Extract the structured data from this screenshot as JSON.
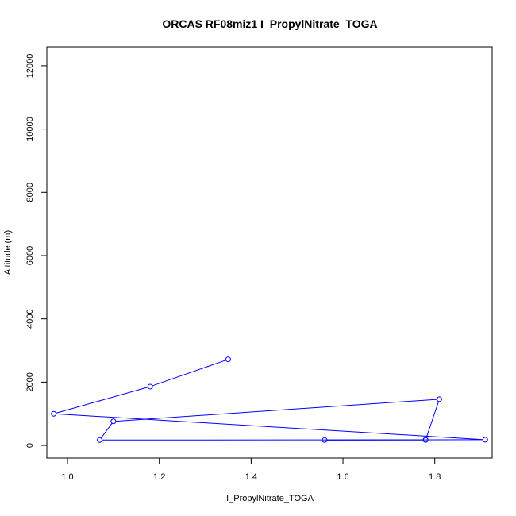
{
  "chart_data": {
    "type": "line",
    "title": "ORCAS RF08miz1 I_PropylNitrate_TOGA",
    "xlabel": "I_PropylNitrate_TOGA",
    "ylabel": "Altitude (m)",
    "xlim": [
      0.955,
      1.925
    ],
    "ylim": [
      -400,
      12600
    ],
    "xticks": [
      1.0,
      1.2,
      1.4,
      1.6,
      1.8
    ],
    "xtick_labels": [
      "1.0",
      "1.2",
      "1.4",
      "1.6",
      "1.8"
    ],
    "yticks": [
      0,
      2000,
      4000,
      6000,
      8000,
      10000,
      12000
    ],
    "ytick_labels": [
      "0",
      "2000",
      "4000",
      "6000",
      "8000",
      "10000",
      "12000"
    ],
    "grid": false,
    "series": [
      {
        "color": "#0000ff",
        "marker": "open-circle",
        "points": [
          {
            "x": 1.35,
            "y": 2720
          },
          {
            "x": 1.18,
            "y": 1860
          },
          {
            "x": 0.97,
            "y": 1000
          },
          {
            "x": 1.91,
            "y": 180
          },
          {
            "x": 1.56,
            "y": 170
          },
          {
            "x": 1.78,
            "y": 175
          },
          {
            "x": 1.07,
            "y": 170
          },
          {
            "x": 1.1,
            "y": 760
          },
          {
            "x": 1.81,
            "y": 1460
          },
          {
            "x": 1.78,
            "y": 175
          }
        ]
      }
    ]
  }
}
